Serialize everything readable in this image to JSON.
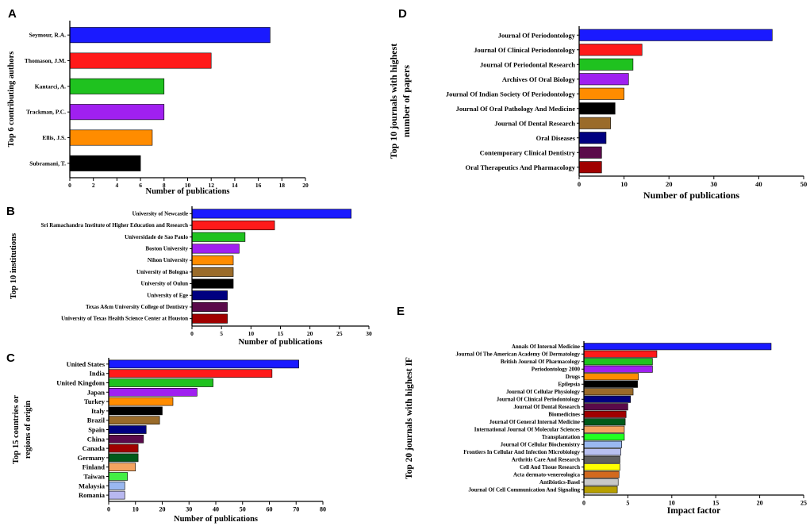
{
  "chart_data": [
    {
      "panel": "A",
      "type": "bar",
      "orientation": "horizontal",
      "ylabel": "Top 6 contributing authors",
      "xlabel": "Number of publications",
      "xlim": [
        0,
        20
      ],
      "ticks": [
        "0",
        "2",
        "4",
        "6",
        "8",
        "10",
        "12",
        "14",
        "16",
        "18",
        "20"
      ],
      "categories": [
        "Seymour, R.A.",
        "Thomason, J.M.",
        "Kantarci, A.",
        "Trackman, P.C.",
        "Ellis, J.S.",
        "Subramani, T."
      ],
      "values": [
        17,
        12,
        8,
        8,
        7,
        6
      ],
      "colors": [
        "#1a1aff",
        "#ff1a1a",
        "#1fc21f",
        "#a020f0",
        "#ff8c00",
        "#000000"
      ]
    },
    {
      "panel": "B",
      "type": "bar",
      "orientation": "horizontal",
      "ylabel": "Top 10 institutions",
      "xlabel": "Number of publications",
      "xlim": [
        0,
        30
      ],
      "ticks": [
        "0",
        "5",
        "10",
        "15",
        "20",
        "25",
        "30"
      ],
      "categories": [
        "University of Newcastle",
        "Sri Ramachandra Institute of Higher Education and Research",
        "Universidade de Sao Paulo",
        "Boston University",
        "Nihon University",
        "University of Bologna",
        "University of Oulun",
        "University of Ege",
        "Texas A&m University College of Dentistry",
        "University of Texas Health Science Center at Houston"
      ],
      "values": [
        27,
        14,
        9,
        8,
        7,
        7,
        7,
        6,
        6,
        6
      ],
      "colors": [
        "#1a1aff",
        "#ff1a1a",
        "#1fc21f",
        "#a020f0",
        "#ff8c00",
        "#9a6b2a",
        "#000000",
        "#000080",
        "#5a0a4a",
        "#a00000"
      ]
    },
    {
      "panel": "C",
      "type": "bar",
      "orientation": "horizontal",
      "ylabel": "Top 15 countries or regions of origin",
      "ylabel_lines": [
        "Top 15 countries or",
        "regions of origin"
      ],
      "xlabel": "Number of publications",
      "xlim": [
        0,
        80
      ],
      "ticks": [
        "0",
        "10",
        "20",
        "30",
        "40",
        "50",
        "60",
        "70",
        "80"
      ],
      "categories": [
        "United States",
        "India",
        "United Kingdom",
        "Japan",
        "Turkey",
        "Italy",
        "Brazil",
        "Spain",
        "China",
        "Canada",
        "Germany",
        "Finland",
        "Taiwan",
        "Malaysia",
        "Romania"
      ],
      "values": [
        71,
        61,
        39,
        33,
        24,
        20,
        19,
        14,
        13,
        11,
        11,
        10,
        7,
        6,
        6
      ],
      "colors": [
        "#1a1aff",
        "#ff1a1a",
        "#1fc21f",
        "#a020f0",
        "#ff8c00",
        "#000000",
        "#9a6b2a",
        "#000080",
        "#5a0a4a",
        "#a00000",
        "#005a1a",
        "#f4a460",
        "#44ee44",
        "#9ab8f0",
        "#b8b8f0"
      ]
    },
    {
      "panel": "D",
      "type": "bar",
      "orientation": "horizontal",
      "ylabel": "Top 10 journals with highest number of papers",
      "ylabel_lines": [
        "Top 10 journals with highest",
        "number of papers"
      ],
      "xlabel": "Number of publications",
      "xlim": [
        0,
        50
      ],
      "ticks": [
        "0",
        "10",
        "20",
        "30",
        "40",
        "50"
      ],
      "categories": [
        "Journal Of Periodontology",
        "Journal Of Clinical Periodontology",
        "Journal Of Periodontal Research",
        "Archives Of Oral Biology",
        "Journal Of Indian Society Of Periodontology",
        "Journal Of Oral Pathology And Medicine",
        "Journal Of Dental Research",
        "Oral Diseases",
        "Contemporary Clinical Dentistry",
        "Oral Therapeutics And Pharmacology"
      ],
      "values": [
        43,
        14,
        12,
        11,
        10,
        8,
        7,
        6,
        5,
        5
      ],
      "colors": [
        "#1a1aff",
        "#ff1a1a",
        "#1fc21f",
        "#a020f0",
        "#ff8c00",
        "#000000",
        "#9a6b2a",
        "#000080",
        "#5a0a4a",
        "#a00000"
      ]
    },
    {
      "panel": "E",
      "type": "bar",
      "orientation": "horizontal",
      "ylabel": "Top 20 journals with highest IF",
      "xlabel": "Impact factor",
      "xlim": [
        0,
        25
      ],
      "ticks": [
        "0",
        "5",
        "10",
        "15",
        "20",
        "25"
      ],
      "categories": [
        "Annals Of Internal Medicine",
        "Journal Of The American Academy Of Dermatology",
        "British Journal Of Pharmacology",
        "Periodontology 2000",
        "Drugs",
        "Epilepsia",
        "Journal Of Cellular Physiology",
        "Journal Of Clinical Periodontology",
        "Journal Of Dental Research",
        "Biomedicines",
        "Journal Of General Internal Medicine",
        "International Journal Of Molecular Sciences",
        "Transplantation",
        "Journal Of Cellular Biochemistry",
        "Frontiers In Cellular And Infection Microbiology",
        "Arthritis Care And Research",
        "Cell And Tissue Research",
        "Acta dermato-venereologica",
        "Antibiotics-Basel",
        "Journal Of Cell Communication And Signaling"
      ],
      "values": [
        21.3,
        8.3,
        7.8,
        7.8,
        6.2,
        6.1,
        5.6,
        5.3,
        5.0,
        4.8,
        4.7,
        4.6,
        4.6,
        4.3,
        4.2,
        4.1,
        4.1,
        4.0,
        3.9,
        3.8
      ],
      "colors": [
        "#1a1aff",
        "#ff1a1a",
        "#1fc21f",
        "#a020f0",
        "#ff8c00",
        "#000000",
        "#9a6b2a",
        "#000080",
        "#5a0a4a",
        "#a00000",
        "#005a1a",
        "#f4a460",
        "#22ff22",
        "#9ab8f0",
        "#b8c0f0",
        "#606060",
        "#ffff00",
        "#d2691e",
        "#c8c8c8",
        "#b8a000"
      ]
    }
  ]
}
